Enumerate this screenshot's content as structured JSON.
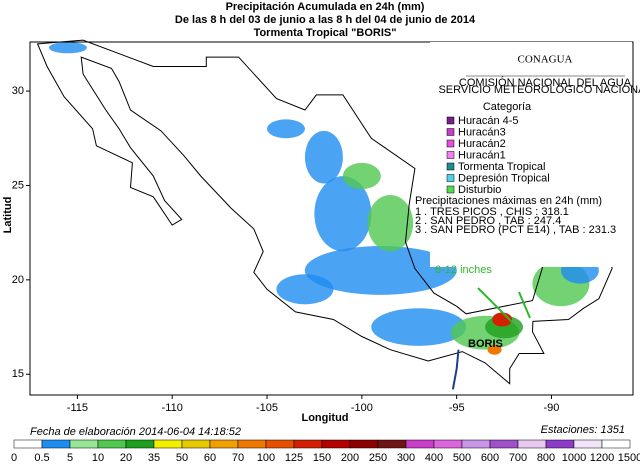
{
  "header": {
    "title": [
      "Precipitación Acumulada en 24h (mm)",
      "De las 8 h del 03 de junio  a las 8 h del 04 de junio de 2014",
      "Tormenta Tropical \"BORIS\""
    ]
  },
  "logo": {
    "name": "CONAGUA",
    "line1": "COMISIÓN NACIONAL DEL AGUA",
    "line2": "SERVICIO METEOROLÓGICO NACIONAL"
  },
  "legend": {
    "title": "Categoría",
    "items": [
      {
        "label": "Huracán 4-5",
        "color": "#7a1e8c"
      },
      {
        "label": "Huracán3",
        "color": "#c83cc8"
      },
      {
        "label": "Huracán2",
        "color": "#e650dc"
      },
      {
        "label": "Huracán1",
        "color": "#f080f0"
      },
      {
        "label": "Tormenta Tropical",
        "color": "#1e8c8c"
      },
      {
        "label": "Depresión Tropical",
        "color": "#50d2e6"
      },
      {
        "label": "Disturbio",
        "color": "#50dc50"
      }
    ]
  },
  "max_precip": {
    "title": "Precipitaciones máximas en 24h (mm)",
    "stations": [
      "1 . TRES PICOS , CHIS : 318.1",
      "2 . SAN PEDRO , TAB : 247.4",
      "3 . SAN PEDRO (PCT E14) , TAB : 231.3"
    ]
  },
  "annotation": "6-12 inches",
  "storm_label": "BORIS",
  "axes": {
    "xlabel": "Longitud",
    "ylabel": "Latitud",
    "xlim": [
      -117.5,
      -85.7
    ],
    "ylim": [
      13.9,
      32.6
    ],
    "xticks": [
      -115,
      -110,
      -105,
      -100,
      -95,
      -90
    ],
    "yticks": [
      15,
      20,
      25,
      30
    ]
  },
  "footer": {
    "date": "Fecha de elaboración 2014-06-04 14:18:52",
    "stations": "Estaciones:  1351"
  },
  "colorbar": {
    "levels": [
      0,
      0.5,
      5,
      10,
      20,
      35,
      50,
      60,
      70,
      100,
      125,
      150,
      200,
      250,
      300,
      400,
      500,
      600,
      700,
      800,
      1000,
      1200,
      1500
    ],
    "colors": [
      "#ffffff",
      "#1e8cf0",
      "#96e696",
      "#50c850",
      "#1ea01e",
      "#f0f000",
      "#e6c800",
      "#f0a000",
      "#f07800",
      "#e65000",
      "#d22000",
      "#b40000",
      "#8c0000",
      "#6e1414",
      "#c83cc8",
      "#dc64dc",
      "#c896e6",
      "#a050c8",
      "#e6c8f0",
      "#8c3cc8",
      "#f0e6f8",
      "#ffffff"
    ]
  }
}
